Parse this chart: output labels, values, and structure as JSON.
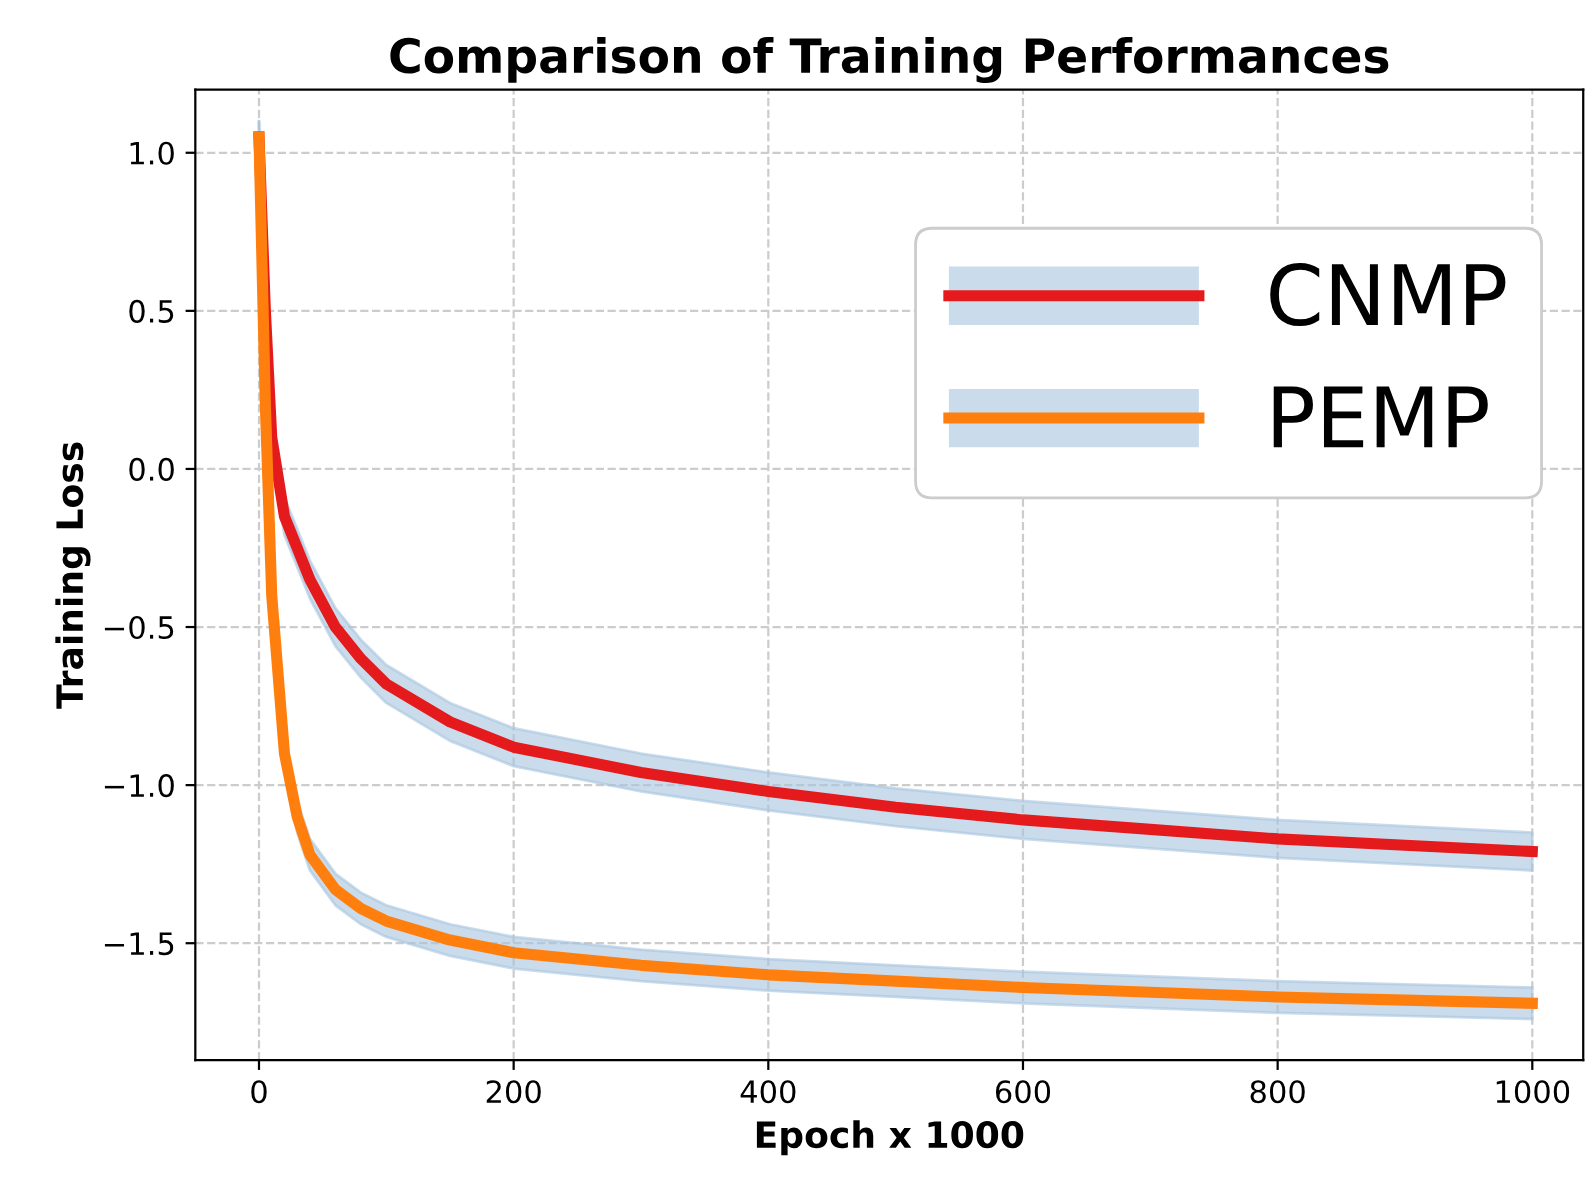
{
  "chart_data": {
    "type": "line",
    "title": "Comparison of Training Performances",
    "xlabel": "Epoch x 1000",
    "ylabel": "Training Loss",
    "xlim": [
      -50,
      1040
    ],
    "ylim": [
      -1.87,
      1.2
    ],
    "xticks": [
      0,
      200,
      400,
      600,
      800,
      1000
    ],
    "yticks": [
      {
        "value": 1.0,
        "label": "1.0"
      },
      {
        "value": 0.5,
        "label": "0.5"
      },
      {
        "value": 0.0,
        "label": "0.0"
      },
      {
        "value": -0.5,
        "label": "−0.5"
      },
      {
        "value": -1.0,
        "label": "−1.0"
      },
      {
        "value": -1.5,
        "label": "−1.5"
      }
    ],
    "grid": true,
    "legend": "top right",
    "line_style": "solid",
    "marker": "none",
    "series": [
      {
        "name": "CNMP",
        "color": "#e41a1c",
        "x": [
          0,
          5,
          10,
          20,
          40,
          60,
          80,
          100,
          150,
          200,
          300,
          400,
          500,
          600,
          700,
          800,
          900,
          1000
        ],
        "values": [
          1.05,
          0.5,
          0.1,
          -0.15,
          -0.35,
          -0.5,
          -0.6,
          -0.68,
          -0.8,
          -0.88,
          -0.96,
          -1.02,
          -1.07,
          -1.11,
          -1.14,
          -1.17,
          -1.19,
          -1.21
        ],
        "lower": [
          1.0,
          0.44,
          0.04,
          -0.21,
          -0.41,
          -0.56,
          -0.66,
          -0.74,
          -0.86,
          -0.94,
          -1.02,
          -1.08,
          -1.13,
          -1.17,
          -1.2,
          -1.23,
          -1.25,
          -1.27
        ],
        "upper": [
          1.1,
          0.56,
          0.16,
          -0.09,
          -0.29,
          -0.44,
          -0.54,
          -0.62,
          -0.74,
          -0.82,
          -0.9,
          -0.96,
          -1.01,
          -1.05,
          -1.08,
          -1.11,
          -1.13,
          -1.15
        ]
      },
      {
        "name": "PEMP",
        "color": "#ff7f0e",
        "x": [
          0,
          5,
          10,
          20,
          30,
          40,
          60,
          80,
          100,
          150,
          200,
          300,
          400,
          500,
          600,
          700,
          800,
          900,
          1000
        ],
        "values": [
          1.05,
          0.2,
          -0.4,
          -0.9,
          -1.1,
          -1.22,
          -1.33,
          -1.39,
          -1.43,
          -1.49,
          -1.53,
          -1.57,
          -1.6,
          -1.62,
          -1.64,
          -1.655,
          -1.67,
          -1.68,
          -1.69
        ],
        "lower": [
          1.0,
          0.15,
          -0.45,
          -0.95,
          -1.15,
          -1.27,
          -1.38,
          -1.44,
          -1.48,
          -1.54,
          -1.58,
          -1.62,
          -1.65,
          -1.67,
          -1.69,
          -1.705,
          -1.72,
          -1.73,
          -1.74
        ],
        "upper": [
          1.1,
          0.25,
          -0.35,
          -0.85,
          -1.05,
          -1.17,
          -1.28,
          -1.34,
          -1.38,
          -1.44,
          -1.48,
          -1.52,
          -1.55,
          -1.57,
          -1.59,
          -1.605,
          -1.62,
          -1.63,
          -1.64
        ]
      }
    ]
  }
}
